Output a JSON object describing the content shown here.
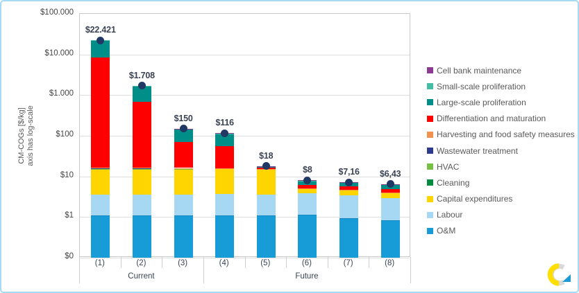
{
  "frame": {
    "border_color": "#a6d9f4",
    "background": "#ffffff"
  },
  "chart_data": {
    "type": "bar",
    "subtype": "stacked-log-scale",
    "title": "",
    "y_axis": {
      "title_line1": "CM-COGs  [$/kg]",
      "title_line2": "axis  has  log-scale",
      "ticks": [
        "$100.000",
        "$10.000",
        "$1.000",
        "$100",
        "$10",
        "$1",
        "$0"
      ],
      "tick_values": [
        100000,
        10000,
        1000,
        100,
        10,
        1,
        0.1
      ],
      "ylim": [
        0.1,
        100000
      ],
      "grid": true
    },
    "categories": [
      "(1)",
      "(2)",
      "(3)",
      "(4)",
      "(5)",
      "(6)",
      "(7)",
      "(8)"
    ],
    "group_labels": [
      {
        "label": "Current",
        "from": 0,
        "to": 2
      },
      {
        "label": "Future",
        "from": 3,
        "to": 7
      }
    ],
    "legend_position": "right",
    "marker_color": "#203864",
    "totals": [
      22421,
      1708,
      150,
      116,
      18,
      8,
      7.16,
      6.43
    ],
    "total_labels": [
      "$22.421",
      "$1.708",
      "$150",
      "$116",
      "$18",
      "$8",
      "$7,16",
      "$6,43"
    ],
    "series": [
      {
        "name": "Cell bank maintenance",
        "color": "#8b3a92",
        "values": [
          20,
          3,
          0.4,
          0.9,
          0.05,
          0.05,
          0.04,
          0.05
        ]
      },
      {
        "name": "Small-scale proliferation",
        "color": "#43bea4",
        "values": [
          120,
          9,
          1.2,
          2.6,
          0.15,
          0.15,
          0.12,
          0.18
        ]
      },
      {
        "name": "Large-scale proliferation",
        "color": "#008e89",
        "values": [
          13690,
          1019,
          78,
          56.5,
          1.0,
          1.65,
          1.35,
          1.35
        ]
      },
      {
        "name": "Differentiation and maturation",
        "color": "#fe0000",
        "values": [
          8575,
          660,
          53.3,
          39.5,
          1.6,
          1.05,
          0.95,
          0.8
        ]
      },
      {
        "name": "Harvesting and food safety measures",
        "color": "#f0924e",
        "values": [
          0.6,
          0.6,
          0.5,
          0.2,
          0.1,
          0.04,
          0.04,
          0.04
        ]
      },
      {
        "name": "Wastewater treatment",
        "color": "#2e3a8c",
        "values": [
          0.4,
          0.4,
          0.3,
          0.1,
          0.05,
          0.03,
          0.03,
          0.03
        ]
      },
      {
        "name": "HVAC",
        "color": "#78c043",
        "values": [
          0.3,
          0.3,
          0.2,
          0.08,
          0.03,
          0.02,
          0.02,
          0.02
        ]
      },
      {
        "name": "Cleaning",
        "color": "#008b3f",
        "values": [
          0.3,
          0.3,
          0.2,
          0.07,
          0.02,
          0.01,
          0.01,
          0.01
        ]
      },
      {
        "name": "Capital expenditures",
        "color": "#ffd500",
        "values": [
          11.3,
          11.3,
          11.3,
          11.9,
          11.4,
          1.2,
          1.2,
          1.05
        ]
      },
      {
        "name": "Labour",
        "color": "#a6d8f4",
        "values": [
          2.5,
          2.5,
          2.5,
          2.55,
          2.5,
          2.65,
          2.45,
          2.08
        ]
      },
      {
        "name": "O&M",
        "color": "#189cd8",
        "values": [
          1.1,
          1.1,
          1.1,
          1.1,
          1.1,
          1.15,
          0.95,
          0.82
        ]
      }
    ],
    "stacking_note": "bars stack bottom-to-top in reverse legend order (O&M at bottom)"
  },
  "logo": {
    "name": "swirl-logo",
    "colors": {
      "yellow": "#ffde00",
      "gray": "#d9d9d9",
      "blue": "#1c9ad6"
    }
  }
}
